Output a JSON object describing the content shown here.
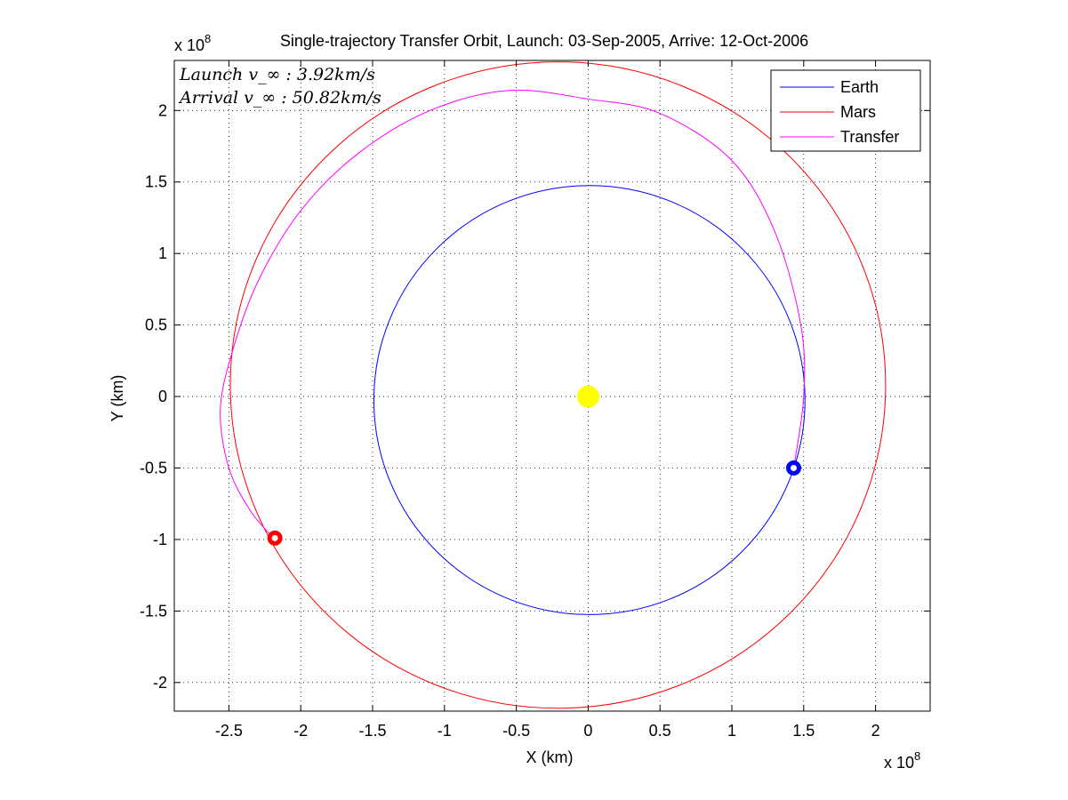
{
  "chart_data": {
    "type": "line",
    "title": "Single-trajectory Transfer Orbit, Launch: 03-Sep-2005, Arrive: 12-Oct-2006",
    "xlabel": "X (km)",
    "ylabel": "Y (km)",
    "x_exponent_label": "x 10",
    "x_exponent_power": "8",
    "y_exponent_label": "x 10",
    "y_exponent_power": "8",
    "xlim": [
      -2.88,
      2.38
    ],
    "ylim": [
      -2.2,
      2.35
    ],
    "xticks": [
      -2.5,
      -2,
      -1.5,
      -1,
      -0.5,
      0,
      0.5,
      1,
      1.5,
      2
    ],
    "xtick_labels": [
      "-2.5",
      "-2",
      "-1.5",
      "-1",
      "-0.5",
      "0",
      "0.5",
      "1",
      "1.5",
      "2"
    ],
    "yticks": [
      -2,
      -1.5,
      -1,
      -0.5,
      0,
      0.5,
      1,
      1.5,
      2
    ],
    "ytick_labels": [
      "-2",
      "-1.5",
      "-1",
      "-0.5",
      "0",
      "0.5",
      "1",
      "1.5",
      "2"
    ],
    "grid": true,
    "legend_position": "top-right",
    "annotations": [
      "Launch v_∞ : 3.92km/s",
      "Arrival v_∞ : 50.82km/s"
    ],
    "series": [
      {
        "name": "Earth",
        "color": "#0000ff",
        "kind": "ellipse",
        "center": [
          0.009,
          -0.025
        ],
        "radius_x": 1.5,
        "radius_y": 1.5
      },
      {
        "name": "Mars",
        "color": "#ff0000",
        "kind": "ellipse",
        "center": [
          -0.21,
          0.08
        ],
        "radius_x": 2.28,
        "radius_y": 2.26
      },
      {
        "name": "Transfer",
        "color": "#ff00ff",
        "kind": "arc",
        "points": [
          [
            1.43,
            -0.5
          ],
          [
            1.5,
            0.0
          ],
          [
            1.48,
            0.5
          ],
          [
            1.3,
            1.15
          ],
          [
            1.0,
            1.65
          ],
          [
            0.5,
            1.98
          ],
          [
            0.0,
            2.08
          ],
          [
            -0.55,
            2.14
          ],
          [
            -1.1,
            2.0
          ],
          [
            -1.6,
            1.7
          ],
          [
            -2.0,
            1.3
          ],
          [
            -2.3,
            0.8
          ],
          [
            -2.48,
            0.3
          ],
          [
            -2.56,
            -0.1
          ],
          [
            -2.5,
            -0.5
          ],
          [
            -2.35,
            -0.8
          ],
          [
            -2.18,
            -1.0
          ]
        ]
      }
    ],
    "markers": [
      {
        "name": "Sun",
        "x": 0.0,
        "y": 0.0,
        "color": "#ffff00"
      },
      {
        "name": "Earth at launch",
        "x": 1.43,
        "y": -0.5,
        "color": "#0000ff"
      },
      {
        "name": "Mars at arrival",
        "x": -2.18,
        "y": -0.99,
        "color": "#ff0000"
      }
    ]
  }
}
